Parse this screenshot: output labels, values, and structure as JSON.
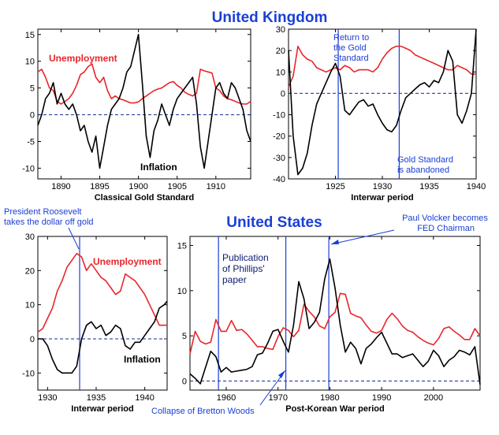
{
  "colors": {
    "unemployment": "#e8262a",
    "inflation": "#000000",
    "annotation": "#1a3fd6",
    "axis": "#000000"
  },
  "headings": {
    "uk": "United Kingdom",
    "us": "United States"
  },
  "chart_data": [
    {
      "id": "uk-classical",
      "type": "line",
      "xlabel": "Classical Gold Standard",
      "xlim": [
        1887,
        1914.5
      ],
      "ylim": [
        -12,
        16
      ],
      "xticks": [
        1890,
        1895,
        1900,
        1905,
        1910
      ],
      "yticks": [
        -10,
        -5,
        0,
        5,
        10,
        15
      ],
      "zero_line": true,
      "grid": false,
      "series": [
        {
          "name": "Unemployment",
          "color": "#e8262a",
          "x": [
            1887,
            1887.5,
            1888,
            1888.5,
            1889,
            1889.5,
            1890,
            1890.5,
            1891,
            1891.5,
            1892,
            1892.5,
            1893,
            1893.5,
            1894,
            1894.5,
            1895,
            1895.5,
            1896,
            1896.5,
            1897,
            1897.5,
            1898,
            1898.5,
            1899,
            1899.5,
            1900,
            1900.5,
            1901,
            1901.5,
            1902,
            1902.5,
            1903,
            1903.5,
            1904,
            1904.5,
            1905,
            1905.5,
            1906,
            1906.5,
            1907,
            1907.5,
            1908,
            1908.5,
            1909,
            1909.5,
            1910,
            1910.5,
            1911,
            1911.5,
            1912,
            1912.5,
            1913,
            1913.5,
            1914,
            1914.5
          ],
          "y": [
            8,
            8.5,
            7,
            5,
            4.5,
            2.5,
            2,
            2.5,
            3,
            4,
            5.5,
            7.5,
            8,
            9,
            9.5,
            7,
            6,
            7,
            4.5,
            3,
            3.5,
            3,
            2.8,
            2.5,
            2.2,
            2.2,
            2.4,
            3,
            3.5,
            4,
            4.5,
            4.8,
            5,
            5.5,
            6,
            6.2,
            5.5,
            5,
            4.2,
            3.8,
            3.5,
            4,
            8.5,
            8.2,
            8,
            7.8,
            5,
            4.5,
            3.5,
            3,
            2.8,
            2.5,
            2.2,
            2,
            2,
            2.5
          ]
        },
        {
          "name": "Inflation",
          "color": "#000000",
          "x": [
            1887,
            1887.5,
            1888,
            1888.5,
            1889,
            1889.5,
            1890,
            1890.5,
            1891,
            1891.5,
            1892,
            1892.5,
            1893,
            1893.5,
            1894,
            1894.5,
            1895,
            1895.5,
            1896,
            1896.5,
            1897,
            1897.5,
            1898,
            1898.5,
            1899,
            1899.5,
            1900,
            1900.5,
            1901,
            1901.5,
            1902,
            1902.5,
            1903,
            1903.5,
            1904,
            1904.5,
            1905,
            1905.5,
            1906,
            1906.5,
            1907,
            1907.5,
            1908,
            1908.5,
            1909,
            1909.5,
            1910,
            1910.5,
            1911,
            1911.5,
            1912,
            1912.5,
            1913,
            1913.5,
            1914,
            1914.5
          ],
          "y": [
            -2,
            0,
            3,
            4,
            6,
            2,
            4,
            2,
            1,
            2,
            0,
            -3,
            -2,
            -5,
            -7,
            -4,
            -10,
            -6,
            -2,
            1,
            2,
            3,
            5,
            8,
            9,
            12,
            15,
            6,
            -4,
            -8,
            -3,
            -1,
            2,
            0,
            -2,
            1,
            3,
            4,
            5,
            6,
            7,
            2,
            -6,
            -10,
            -5,
            0,
            5,
            6,
            4,
            3,
            6,
            5,
            3,
            1,
            -3,
            -5
          ]
        }
      ],
      "labels": [
        "Unemployment",
        "Inflation"
      ]
    },
    {
      "id": "uk-interwar",
      "type": "line",
      "xlabel": "Interwar period",
      "xlim": [
        1920,
        1940
      ],
      "ylim": [
        -40,
        30
      ],
      "xticks": [
        1925,
        1930,
        1935,
        1940
      ],
      "yticks": [
        -40,
        -30,
        -20,
        -10,
        0,
        10,
        20,
        30
      ],
      "zero_line": true,
      "grid": false,
      "vlines": [
        1925.3,
        1931.8
      ],
      "annotations": [
        {
          "text": [
            "Return to",
            "the Gold",
            "Standard"
          ]
        },
        {
          "text": [
            "Gold Standard",
            "is abandoned"
          ]
        }
      ],
      "series": [
        {
          "name": "",
          "color": "#e8262a",
          "x": [
            1920,
            1920.5,
            1921,
            1921.5,
            1922,
            1922.5,
            1923,
            1923.5,
            1924,
            1924.5,
            1925,
            1925.5,
            1926,
            1926.5,
            1927,
            1927.5,
            1928,
            1928.5,
            1929,
            1929.5,
            1930,
            1930.5,
            1931,
            1931.5,
            1932,
            1932.5,
            1933,
            1933.5,
            1934,
            1934.5,
            1935,
            1935.5,
            1936,
            1936.5,
            1937,
            1937.5,
            1938,
            1938.5,
            1939,
            1939.5,
            1940
          ],
          "y": [
            3,
            8,
            22,
            18,
            16,
            15,
            12,
            11,
            10,
            11,
            12,
            11,
            13,
            12,
            10,
            11,
            11,
            11,
            10,
            12,
            16,
            19,
            21,
            22,
            22,
            21,
            20,
            18,
            17,
            16,
            15,
            14,
            13,
            12,
            11,
            11,
            13,
            12,
            11,
            9,
            9
          ]
        },
        {
          "name": "",
          "color": "#000000",
          "x": [
            1920,
            1920.5,
            1921,
            1921.5,
            1922,
            1922.5,
            1923,
            1923.5,
            1924,
            1924.5,
            1925,
            1925.5,
            1926,
            1926.5,
            1927,
            1927.5,
            1928,
            1928.5,
            1929,
            1929.5,
            1930,
            1930.5,
            1931,
            1931.5,
            1932,
            1932.5,
            1933,
            1933.5,
            1934,
            1934.5,
            1935,
            1935.5,
            1936,
            1936.5,
            1937,
            1937.5,
            1938,
            1938.5,
            1939,
            1939.5,
            1940
          ],
          "y": [
            20,
            -20,
            -38,
            -35,
            -28,
            -15,
            -5,
            0,
            5,
            10,
            14,
            8,
            -8,
            -10,
            -7,
            -4,
            -3,
            -6,
            -5,
            -10,
            -14,
            -17,
            -18,
            -15,
            -8,
            -2,
            0,
            2,
            4,
            5,
            3,
            6,
            5,
            10,
            20,
            15,
            -10,
            -14,
            -8,
            0,
            30
          ]
        }
      ]
    },
    {
      "id": "us-interwar",
      "type": "line",
      "xlabel": "Interwar period",
      "xlim": [
        1929,
        1942.3
      ],
      "ylim": [
        -15,
        30
      ],
      "xticks": [
        1930,
        1935,
        1940
      ],
      "yticks": [
        -10,
        0,
        10,
        20,
        30
      ],
      "zero_line": true,
      "grid": false,
      "vlines": [
        1933.3
      ],
      "annotations": [
        {
          "text": [
            "President Roosevelt",
            "takes the dollar off gold"
          ]
        }
      ],
      "series": [
        {
          "name": "Unemployment",
          "color": "#e8262a",
          "x": [
            1929,
            1929.5,
            1930,
            1930.5,
            1931,
            1931.5,
            1932,
            1932.5,
            1933,
            1933.5,
            1934,
            1934.5,
            1935,
            1935.5,
            1936,
            1936.5,
            1937,
            1937.5,
            1938,
            1938.5,
            1939,
            1939.5,
            1940,
            1940.5,
            1941,
            1941.5,
            1942,
            1942.3
          ],
          "y": [
            2,
            3,
            6,
            9,
            14,
            17,
            21,
            23,
            25,
            24,
            20,
            22,
            20,
            18,
            17,
            15,
            13,
            14,
            19,
            18,
            17,
            15,
            13,
            10,
            7,
            4,
            4,
            4
          ]
        },
        {
          "name": "Inflation",
          "color": "#000000",
          "x": [
            1929,
            1929.5,
            1930,
            1930.5,
            1931,
            1931.5,
            1932,
            1932.5,
            1933,
            1933.5,
            1934,
            1934.5,
            1935,
            1935.5,
            1936,
            1936.5,
            1937,
            1937.5,
            1938,
            1938.5,
            1939,
            1939.5,
            1940,
            1940.5,
            1941,
            1941.5,
            1942,
            1942.3
          ],
          "y": [
            0,
            0,
            -2,
            -6,
            -9,
            -10,
            -10,
            -10,
            -8,
            0,
            4,
            5,
            3,
            4,
            1,
            2,
            4,
            3,
            -2,
            -3,
            -1,
            -1,
            1,
            3,
            5,
            9,
            10,
            11
          ]
        }
      ],
      "labels": [
        "Unemployment",
        "Inflation"
      ]
    },
    {
      "id": "us-postwar",
      "type": "line",
      "xlabel": "Post-Korean War period",
      "xlim": [
        1953,
        2009
      ],
      "ylim": [
        -1,
        16
      ],
      "xticks": [
        1960,
        1970,
        1980,
        1990,
        2000
      ],
      "yticks": [
        0,
        5,
        10,
        15
      ],
      "zero_line": true,
      "grid": false,
      "vlines": [
        1958.5,
        1971.5,
        1979.8
      ],
      "annotations": [
        {
          "text": [
            "Publication",
            "of Phillips'",
            "paper"
          ]
        },
        {
          "text": [
            "Paul Volcker becomes",
            "FED Chairman"
          ]
        },
        {
          "text": [
            "Collapse of Bretton Woods"
          ]
        }
      ],
      "series": [
        {
          "name": "",
          "color": "#e8262a",
          "x": [
            1953,
            1954,
            1955,
            1956,
            1957,
            1958,
            1959,
            1960,
            1961,
            1962,
            1963,
            1964,
            1965,
            1966,
            1967,
            1968,
            1969,
            1970,
            1971,
            1972,
            1973,
            1974,
            1975,
            1976,
            1977,
            1978,
            1979,
            1980,
            1981,
            1982,
            1983,
            1984,
            1985,
            1986,
            1987,
            1988,
            1989,
            1990,
            1991,
            1992,
            1993,
            1994,
            1995,
            1996,
            1997,
            1998,
            1999,
            2000,
            2001,
            2002,
            2003,
            2004,
            2005,
            2006,
            2007,
            2008,
            2009
          ],
          "y": [
            3,
            5.5,
            4.4,
            4.1,
            4.3,
            6.8,
            5.5,
            5.5,
            6.7,
            5.6,
            5.7,
            5.2,
            4.5,
            3.8,
            3.8,
            3.6,
            3.5,
            4.9,
            5.9,
            5.6,
            4.9,
            5.6,
            8.5,
            7.7,
            7.1,
            6.1,
            5.8,
            7.1,
            7.6,
            9.7,
            9.6,
            7.5,
            7.2,
            7,
            6.2,
            5.5,
            5.3,
            5.6,
            6.8,
            7.5,
            6.9,
            6.1,
            5.6,
            5.4,
            4.9,
            4.5,
            4.2,
            4,
            4.7,
            5.8,
            6,
            5.5,
            5.1,
            4.6,
            4.6,
            5.8,
            5
          ]
        },
        {
          "name": "",
          "color": "#000000",
          "x": [
            1953,
            1954,
            1955,
            1956,
            1957,
            1958,
            1959,
            1960,
            1961,
            1962,
            1963,
            1964,
            1965,
            1966,
            1967,
            1968,
            1969,
            1970,
            1971,
            1972,
            1973,
            1974,
            1975,
            1976,
            1977,
            1978,
            1979,
            1980,
            1981,
            1982,
            1983,
            1984,
            1985,
            1986,
            1987,
            1988,
            1989,
            1990,
            1991,
            1992,
            1993,
            1994,
            1995,
            1996,
            1997,
            1998,
            1999,
            2000,
            2001,
            2002,
            2003,
            2004,
            2005,
            2006,
            2007,
            2008,
            2009
          ],
          "y": [
            0.8,
            0.3,
            -0.3,
            1.5,
            3.3,
            2.7,
            1,
            1.5,
            1,
            1.1,
            1.2,
            1.3,
            1.6,
            2.9,
            3.1,
            4.2,
            5.5,
            5.7,
            4.4,
            3.2,
            6.2,
            11,
            9.1,
            5.8,
            6.5,
            7.6,
            11.3,
            13.5,
            10.3,
            6.2,
            3.2,
            4.3,
            3.6,
            1.9,
            3.6,
            4.1,
            4.8,
            5.4,
            4.2,
            3,
            3,
            2.6,
            2.8,
            3,
            2.3,
            1.6,
            2.2,
            3.4,
            2.8,
            1.6,
            2.3,
            2.7,
            3.4,
            3.2,
            2.9,
            3.8,
            -0.4
          ]
        }
      ]
    }
  ]
}
